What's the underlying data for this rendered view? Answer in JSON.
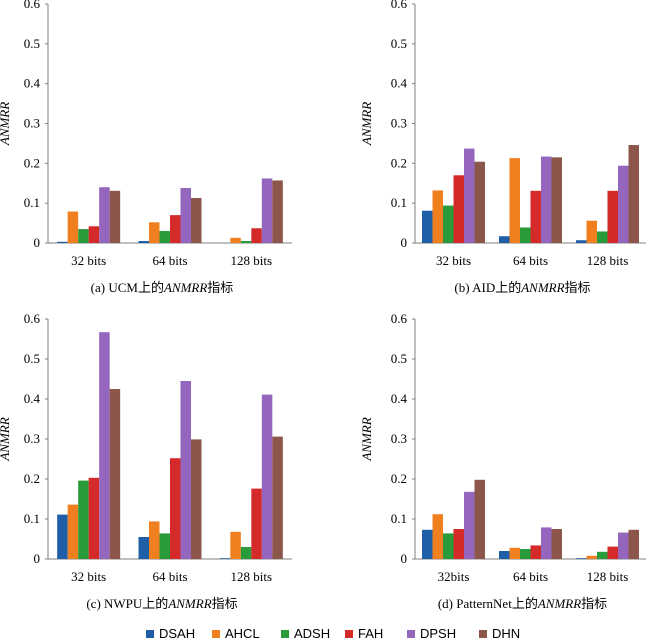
{
  "series_names": [
    "DSAH",
    "AHCL",
    "ADSH",
    "FAH",
    "DPSH",
    "DHN"
  ],
  "colors": [
    "#1f5fa8",
    "#f07f1f",
    "#2a9b3a",
    "#d42a2a",
    "#9466bd",
    "#8c564b"
  ],
  "chart_data": [
    {
      "type": "bar",
      "caption": "(a) UCM上的ANMRR指标",
      "caption_prefix": "(a) UCM上的",
      "caption_metric": "ANMRR",
      "caption_suffix": "指标",
      "ylabel": "ANMRR",
      "ylim": [
        0,
        0.6
      ],
      "yticks": [
        "0",
        "0.1",
        "0.2",
        "0.3",
        "0.4",
        "0.5",
        "0.6"
      ],
      "categories": [
        "32 bits",
        "64 bits",
        "128 bits"
      ],
      "series": [
        {
          "name": "DSAH",
          "values": [
            0.003,
            0.005,
            0.0
          ]
        },
        {
          "name": "AHCL",
          "values": [
            0.079,
            0.052,
            0.013
          ]
        },
        {
          "name": "ADSH",
          "values": [
            0.035,
            0.03,
            0.005
          ]
        },
        {
          "name": "FAH",
          "values": [
            0.042,
            0.07,
            0.037
          ]
        },
        {
          "name": "DPSH",
          "values": [
            0.14,
            0.138,
            0.162
          ]
        },
        {
          "name": "DHN",
          "values": [
            0.131,
            0.113,
            0.157
          ]
        }
      ]
    },
    {
      "type": "bar",
      "caption": "(b) AID上的ANMRR指标",
      "caption_prefix": "(b) AID上的",
      "caption_metric": "ANMRR",
      "caption_suffix": "指标",
      "ylabel": "ANMRR",
      "ylim": [
        0,
        0.6
      ],
      "yticks": [
        "0",
        "0.1",
        "0.2",
        "0.3",
        "0.4",
        "0.5",
        "0.6"
      ],
      "categories": [
        "32 bits",
        "64 bits",
        "128 bits"
      ],
      "series": [
        {
          "name": "DSAH",
          "values": [
            0.081,
            0.017,
            0.007
          ]
        },
        {
          "name": "AHCL",
          "values": [
            0.132,
            0.213,
            0.056
          ]
        },
        {
          "name": "ADSH",
          "values": [
            0.094,
            0.039,
            0.029
          ]
        },
        {
          "name": "FAH",
          "values": [
            0.17,
            0.131,
            0.131
          ]
        },
        {
          "name": "DPSH",
          "values": [
            0.237,
            0.217,
            0.194
          ]
        },
        {
          "name": "DHN",
          "values": [
            0.204,
            0.215,
            0.246
          ]
        }
      ]
    },
    {
      "type": "bar",
      "caption": "(c) NWPU上的ANMRR指标",
      "caption_prefix": "(c) NWPU上的",
      "caption_metric": "ANMRR",
      "caption_suffix": "指标",
      "ylabel": "ANMRR",
      "ylim": [
        0,
        0.6
      ],
      "yticks": [
        "0",
        "0.1",
        "0.2",
        "0.3",
        "0.4",
        "0.5",
        "0.6"
      ],
      "categories": [
        "32 bits",
        "64 bits",
        "128 bits"
      ],
      "series": [
        {
          "name": "DSAH",
          "values": [
            0.111,
            0.055,
            0.002
          ]
        },
        {
          "name": "AHCL",
          "values": [
            0.136,
            0.094,
            0.068
          ]
        },
        {
          "name": "ADSH",
          "values": [
            0.196,
            0.064,
            0.03
          ]
        },
        {
          "name": "FAH",
          "values": [
            0.203,
            0.252,
            0.176
          ]
        },
        {
          "name": "DPSH",
          "values": [
            0.567,
            0.445,
            0.411
          ]
        },
        {
          "name": "DHN",
          "values": [
            0.425,
            0.299,
            0.306
          ]
        }
      ]
    },
    {
      "type": "bar",
      "caption": "(d) PatternNet上的ANMRR指标",
      "caption_prefix": "(d) PatternNet上的",
      "caption_metric": "ANMRR",
      "caption_suffix": "指标",
      "ylabel": "ANMRR",
      "ylim": [
        0,
        0.6
      ],
      "yticks": [
        "0",
        "0.1",
        "0.2",
        "0.3",
        "0.4",
        "0.5",
        "0.6"
      ],
      "categories": [
        "32bits",
        "64 bits",
        "128 bits"
      ],
      "series": [
        {
          "name": "DSAH",
          "values": [
            0.073,
            0.02,
            0.002
          ]
        },
        {
          "name": "AHCL",
          "values": [
            0.112,
            0.028,
            0.008
          ]
        },
        {
          "name": "ADSH",
          "values": [
            0.064,
            0.025,
            0.018
          ]
        },
        {
          "name": "FAH",
          "values": [
            0.075,
            0.034,
            0.031
          ]
        },
        {
          "name": "DPSH",
          "values": [
            0.168,
            0.079,
            0.066
          ]
        },
        {
          "name": "DHN",
          "values": [
            0.198,
            0.075,
            0.073
          ]
        }
      ]
    }
  ]
}
